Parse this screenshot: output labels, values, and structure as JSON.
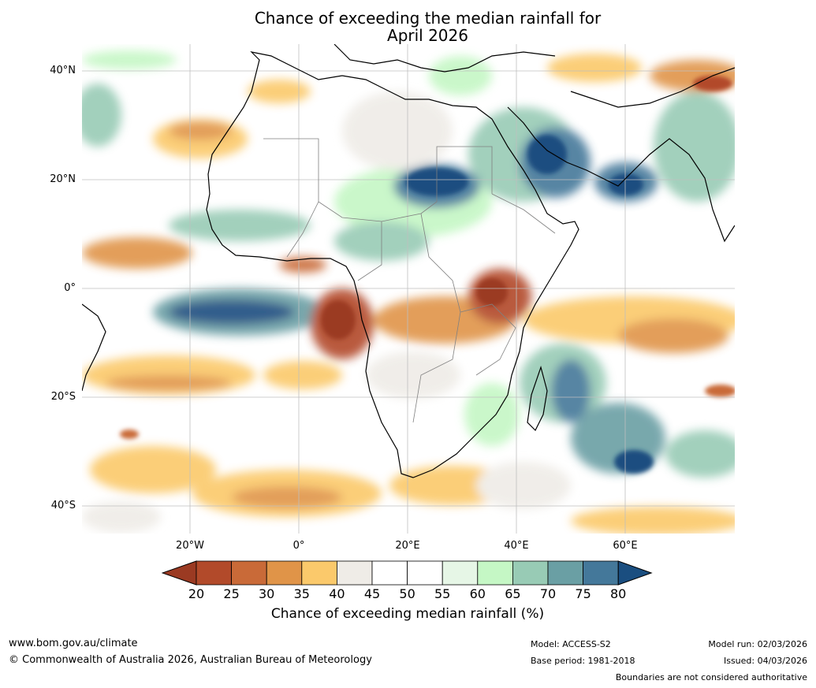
{
  "title": {
    "line1": "Chance of exceeding the median rainfall for",
    "line2": "April 2026"
  },
  "map": {
    "lat_labels": [
      "40°N",
      "20°N",
      "0°",
      "20°S",
      "40°S"
    ],
    "lon_labels": [
      "20°W",
      "0°",
      "20°E",
      "40°E",
      "60°E"
    ]
  },
  "colorbar": {
    "ticks": [
      "20",
      "25",
      "30",
      "35",
      "40",
      "45",
      "50",
      "55",
      "60",
      "65",
      "70",
      "75",
      "80"
    ],
    "label": "Chance of exceeding median rainfall (%)",
    "colors": [
      "#9b3a22",
      "#b24a2a",
      "#c96a38",
      "#e09448",
      "#fbc96b",
      "#efece7",
      "#ffffff",
      "#ffffff",
      "#e6f6e6",
      "#c5f7c5",
      "#98cbb5",
      "#6a9fa4",
      "#44789a",
      "#1a4e80"
    ]
  },
  "footer": {
    "url": "www.bom.gov.au/climate",
    "copyright": "© Commonwealth of Australia 2026, Australian Bureau of Meteorology",
    "model": "Model: ACCESS-S2",
    "base_period": "Base period: 1981-2018",
    "model_run": "Model run: 02/03/2026",
    "issued": "Issued: 04/03/2026",
    "disclaimer": "Boundaries are not considered authoritative"
  }
}
